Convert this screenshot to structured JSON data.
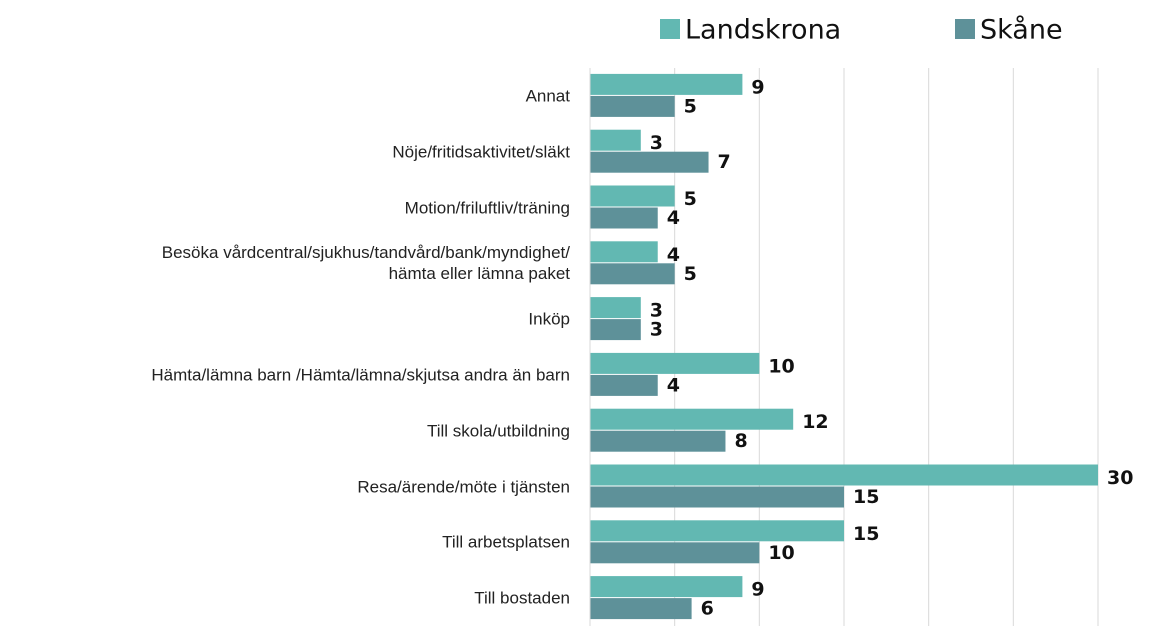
{
  "chart_data": {
    "type": "hbar",
    "categories": [
      "Annat",
      "Nöje/fritidsaktivitet/släkt",
      "Motion/friluftliv/träning",
      "Besöka vårdcentral/sjukhus/tandvård/bank/myndighet/\nhämta eller lämna paket",
      "Inköp",
      "Hämta/lämna barn /Hämta/lämna/skjutsa andra än barn",
      "Till skola/utbildning",
      "Resa/ärende/möte i tjänsten",
      "Till arbetsplatsen",
      "Till bostaden"
    ],
    "series": [
      {
        "name": "Landskrona",
        "color": "#62b8b2",
        "values": [
          9,
          3,
          5,
          4,
          3,
          10,
          12,
          30,
          15,
          9
        ]
      },
      {
        "name": "Skåne",
        "color": "#5e9199",
        "values": [
          5,
          7,
          4,
          5,
          3,
          4,
          8,
          15,
          10,
          6
        ]
      }
    ],
    "xlim": [
      0,
      30
    ],
    "xticks": [
      0,
      5,
      10,
      15,
      20,
      25,
      30
    ],
    "grid": true,
    "legend": "top"
  }
}
